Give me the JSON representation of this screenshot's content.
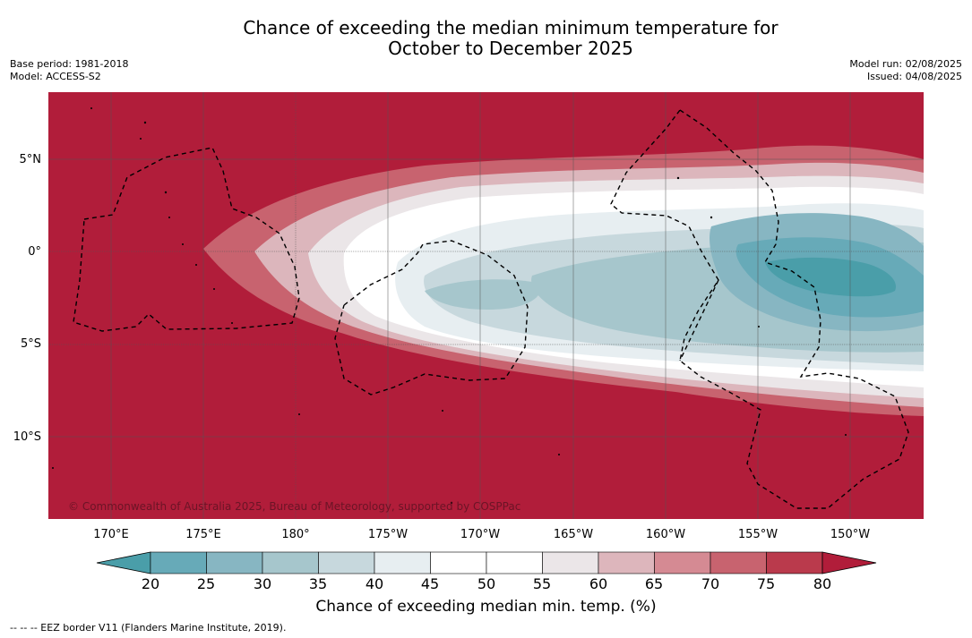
{
  "header": {
    "title_line1": "Chance of exceeding the median minimum temperature for",
    "title_line2": "October to December 2025",
    "base_period": "Base period: 1981-2018",
    "model": "Model: ACCESS-S2",
    "model_run": "Model run: 02/08/2025",
    "issued": "Issued: 04/08/2025"
  },
  "map": {
    "copyright": "© Commonwealth of Australia 2025, Bureau of Meteorology, supported by COSPPac",
    "lat_labels": [
      "5°N",
      "0°",
      "5°S",
      "10°S"
    ],
    "lon_labels": [
      "170°E",
      "175°E",
      "180°",
      "175°W",
      "170°W",
      "165°W",
      "160°W",
      "155°W",
      "150°W"
    ]
  },
  "colorbar": {
    "label": "Chance of exceeding median min. temp. (%)",
    "ticks": [
      "20",
      "25",
      "30",
      "35",
      "40",
      "45",
      "50",
      "55",
      "60",
      "65",
      "70",
      "75",
      "80"
    ],
    "colors": [
      "#4a9ea9",
      "#67aab8",
      "#87b6c2",
      "#a6c6cc",
      "#c7d8dd",
      "#e7eef1",
      "#ffffff",
      "#ffffff",
      "#ebe6e8",
      "#ddb6bc",
      "#d58a93",
      "#c8636f",
      "#ba3a4c",
      "#b11d3a"
    ]
  },
  "footnote": "--  --  -- EEZ border V11 (Flanders Marine Institute, 2019)."
}
